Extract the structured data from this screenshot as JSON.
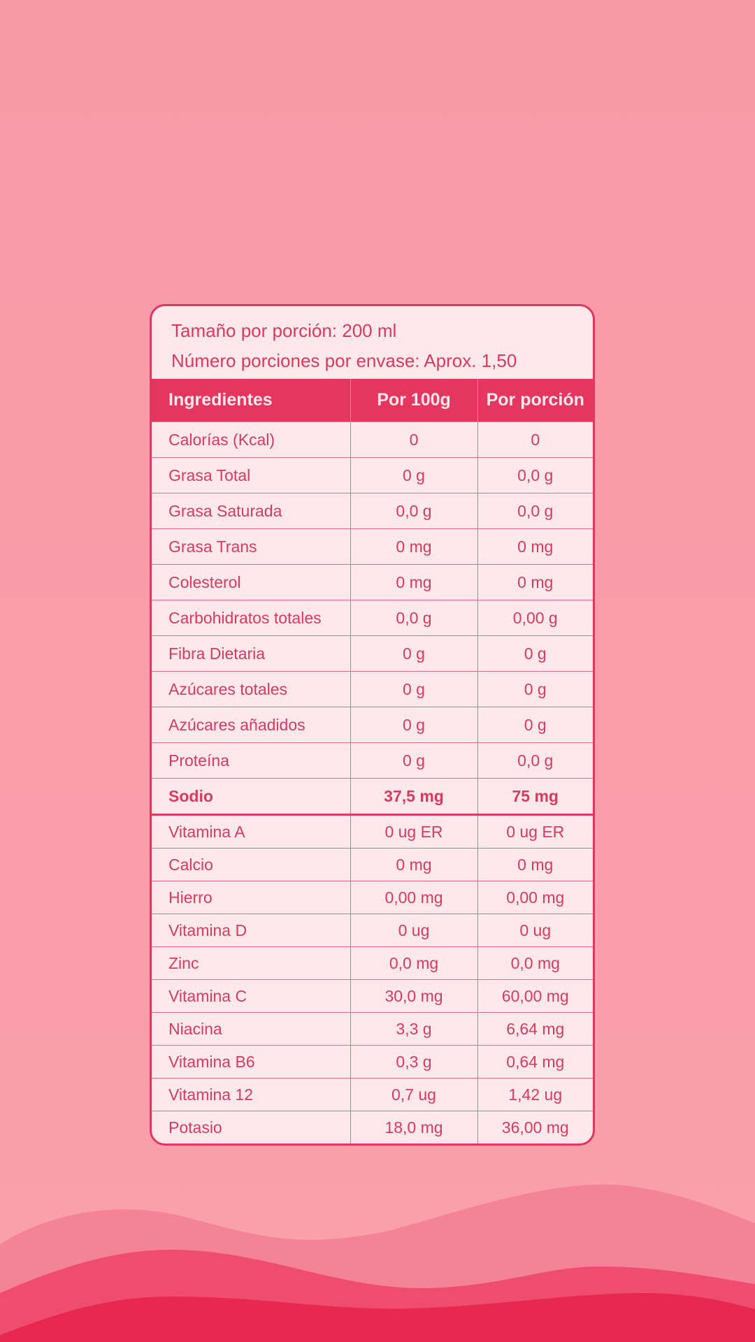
{
  "header": {
    "serving_size": "Tamaño por porción: 200 ml",
    "servings": "Número porciones por envase: Aprox. 1,50"
  },
  "table": {
    "columns": [
      "Ingredientes",
      "Por 100g",
      "Por porción"
    ],
    "rows": [
      [
        "Calorías (Kcal)",
        "0",
        "0"
      ],
      [
        "Grasa Total",
        "0 g",
        "0,0 g"
      ],
      [
        "Grasa Saturada",
        "0,0 g",
        "0,0 g"
      ],
      [
        "Grasa Trans",
        "0 mg",
        "0 mg"
      ],
      [
        "Colesterol",
        "0 mg",
        "0 mg"
      ],
      [
        "Carbohidratos totales",
        "0,0 g",
        "0,00 g"
      ],
      [
        "Fibra Dietaria",
        "0 g",
        "0 g"
      ],
      [
        "Azúcares totales",
        "0 g",
        "0 g"
      ],
      [
        "Azúcares añadidos",
        "0 g",
        "0 g"
      ],
      [
        "Proteína",
        "0 g",
        "0,0 g"
      ],
      [
        "Sodio",
        "37,5 mg",
        "75 mg"
      ]
    ],
    "vitamin_rows": [
      [
        "Vitamina A",
        "0 ug ER",
        "0 ug ER"
      ],
      [
        "Calcio",
        "0 mg",
        "0 mg"
      ],
      [
        "Hierro",
        "0,00 mg",
        "0,00 mg"
      ],
      [
        "Vitamina D",
        "0 ug",
        "0 ug"
      ],
      [
        "Zinc",
        "0,0 mg",
        "0,0 mg"
      ],
      [
        "Vitamina C",
        "30,0 mg",
        "60,00 mg"
      ],
      [
        "Niacina",
        "3,3 g",
        "6,64 mg"
      ],
      [
        "Vitamina B6",
        "0,3 g",
        "0,64 mg"
      ],
      [
        "Vitamina 12",
        "0,7 ug",
        "1,42 ug"
      ],
      [
        "Potasio",
        "18,0 mg",
        "36,00 mg"
      ]
    ]
  }
}
